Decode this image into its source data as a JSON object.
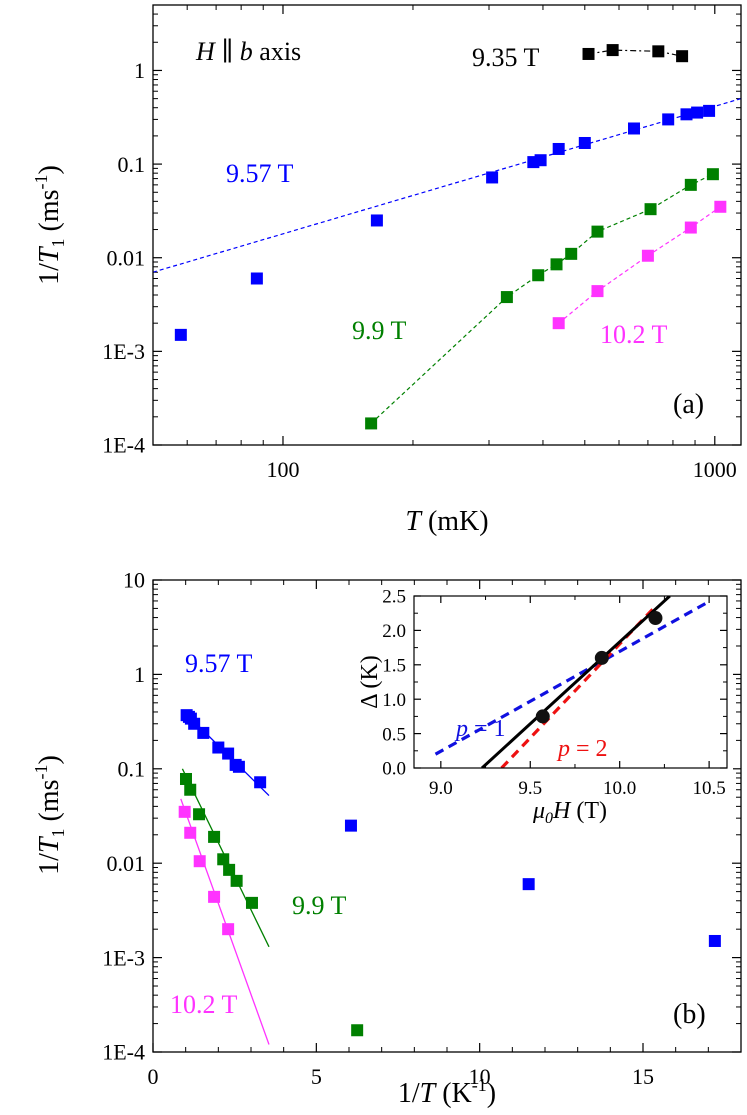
{
  "colors": {
    "b957": "#0000ff",
    "b99": "#008000",
    "b102": "#ff33ff",
    "b935": "#000000",
    "p1": "#1010e0",
    "p2": "#ee1111",
    "fit": "#000000"
  },
  "chart_data": [
    {
      "id": "a",
      "type": "scatter",
      "panel_label": "(a)",
      "annotation": {
        "text_pre": "H",
        "text_sep": " ∥ ",
        "text_var": "b",
        "text_post": " axis"
      },
      "xlabel": {
        "var": "T",
        "unit": " (mK)"
      },
      "ylabel": {
        "pre": "1/",
        "var": "T",
        "sub": "1",
        "unit": " (ms",
        "sup": "-1",
        "close": ")"
      },
      "xscale": "log",
      "yscale": "log",
      "xlim": [
        50,
        1150
      ],
      "ylim": [
        0.0001,
        5
      ],
      "xticks": [
        100,
        1000
      ],
      "xtick_labels": [
        "100",
        "1000"
      ],
      "yticks": [
        0.0001,
        0.001,
        0.01,
        0.1,
        1
      ],
      "ytick_labels": [
        "1E-4",
        "1E-3",
        "0.01",
        "0.1",
        "1"
      ],
      "series": [
        {
          "name": "9.35 T",
          "color_key": "b935",
          "line": "dashdot",
          "x": [
            510,
            580,
            740,
            840
          ],
          "y": [
            1.5,
            1.65,
            1.6,
            1.42
          ]
        },
        {
          "name": "9.57 T",
          "color_key": "b957",
          "line": "none",
          "x": [
            58,
            87,
            165,
            305,
            380,
            395,
            435,
            500,
            650,
            780,
            860,
            910,
            970
          ],
          "y": [
            0.0015,
            0.006,
            0.025,
            0.072,
            0.105,
            0.11,
            0.145,
            0.168,
            0.24,
            0.3,
            0.34,
            0.355,
            0.37
          ]
        },
        {
          "name": "9.9 T",
          "color_key": "b99",
          "line": "dashed",
          "x": [
            160,
            330,
            390,
            430,
            465,
            535,
            710,
            880,
            990
          ],
          "y": [
            0.00017,
            0.0038,
            0.0065,
            0.0085,
            0.011,
            0.019,
            0.033,
            0.06,
            0.078
          ]
        },
        {
          "name": "10.2 T",
          "color_key": "b102",
          "line": "dashed",
          "x": [
            435,
            535,
            700,
            880,
            1030
          ],
          "y": [
            0.002,
            0.0044,
            0.0105,
            0.021,
            0.035
          ]
        }
      ],
      "fit_line": {
        "color_key": "b957",
        "x": [
          50,
          1150
        ],
        "y": [
          0.007,
          0.5
        ]
      }
    },
    {
      "id": "b",
      "type": "scatter",
      "panel_label": "(b)",
      "xlabel": {
        "pre": "1/",
        "var": "T",
        "unit": " (K",
        "sup": "-1",
        "close": ")"
      },
      "ylabel": {
        "pre": "1/",
        "var": "T",
        "sub": "1",
        "unit": " (ms",
        "sup": "-1",
        "close": ")"
      },
      "xscale": "linear",
      "yscale": "log",
      "xlim": [
        0,
        18
      ],
      "ylim": [
        0.0001,
        10
      ],
      "xticks": [
        0,
        5,
        10,
        15
      ],
      "xtick_labels": [
        "0",
        "5",
        "10",
        "15"
      ],
      "yticks": [
        0.0001,
        0.001,
        0.01,
        0.1,
        1,
        10
      ],
      "ytick_labels": [
        "1E-4",
        "1E-3",
        "0.01",
        "0.1",
        "1",
        "10"
      ],
      "series": [
        {
          "name": "9.57 T",
          "color_key": "b957",
          "x": [
            1.03,
            1.1,
            1.16,
            1.26,
            1.54,
            2.0,
            2.3,
            2.53,
            2.63,
            3.28,
            6.06,
            11.5,
            17.2
          ],
          "y": [
            0.37,
            0.355,
            0.34,
            0.3,
            0.24,
            0.168,
            0.145,
            0.11,
            0.105,
            0.072,
            0.025,
            0.006,
            0.0015
          ]
        },
        {
          "name": "9.9 T",
          "color_key": "b99",
          "x": [
            1.01,
            1.14,
            1.41,
            1.87,
            2.15,
            2.33,
            2.56,
            3.03,
            6.25
          ],
          "y": [
            0.078,
            0.06,
            0.033,
            0.019,
            0.011,
            0.0085,
            0.0065,
            0.0038,
            0.00017
          ]
        },
        {
          "name": "10.2 T",
          "color_key": "b102",
          "x": [
            0.97,
            1.14,
            1.43,
            1.87,
            2.3
          ],
          "y": [
            0.035,
            0.021,
            0.0105,
            0.0044,
            0.002
          ]
        }
      ],
      "fit_lines": [
        {
          "color_key": "b957",
          "x": [
            0.9,
            3.55
          ],
          "y": [
            0.42,
            0.052
          ]
        },
        {
          "color_key": "b99",
          "x": [
            0.9,
            3.55
          ],
          "y": [
            0.1,
            0.0013
          ]
        },
        {
          "color_key": "b102",
          "x": [
            0.85,
            3.55
          ],
          "y": [
            0.048,
            0.00012
          ]
        }
      ],
      "inset": {
        "xlabel": {
          "var": "μ",
          "sub": "0",
          "var2": "H",
          "unit": " (T)"
        },
        "ylabel": {
          "var": "Δ",
          "unit": " (K)"
        },
        "xlim": [
          8.85,
          10.6
        ],
        "ylim": [
          0,
          2.5
        ],
        "xticks": [
          9.0,
          9.5,
          10.0,
          10.5
        ],
        "xtick_labels": [
          "9.0",
          "9.5",
          "10.0",
          "10.5"
        ],
        "yticks": [
          0,
          0.5,
          1.0,
          1.5,
          2.0,
          2.5
        ],
        "ytick_labels": [
          "0.0",
          "0.5",
          "1.0",
          "1.5",
          "2.0",
          "2.5"
        ],
        "points": {
          "x": [
            9.57,
            9.9,
            10.2
          ],
          "y": [
            0.75,
            1.6,
            2.18
          ]
        },
        "lines": [
          {
            "name": "p = 1",
            "color_key": "p1",
            "style": "dashed",
            "x": [
              8.97,
              10.5
            ],
            "y": [
              0.2,
              2.42
            ]
          },
          {
            "name": "p = 2",
            "color_key": "p2",
            "style": "dashed",
            "x": [
              9.34,
              10.2
            ],
            "y": [
              0,
              2.35
            ]
          },
          {
            "name": "fit",
            "color_key": "fit",
            "style": "solid",
            "x": [
              9.23,
              10.28
            ],
            "y": [
              0,
              2.5
            ]
          }
        ],
        "label_p1": {
          "var": "p",
          "rest": " = 1"
        },
        "label_p2": {
          "var": "p",
          "rest": " = 2"
        }
      }
    }
  ]
}
